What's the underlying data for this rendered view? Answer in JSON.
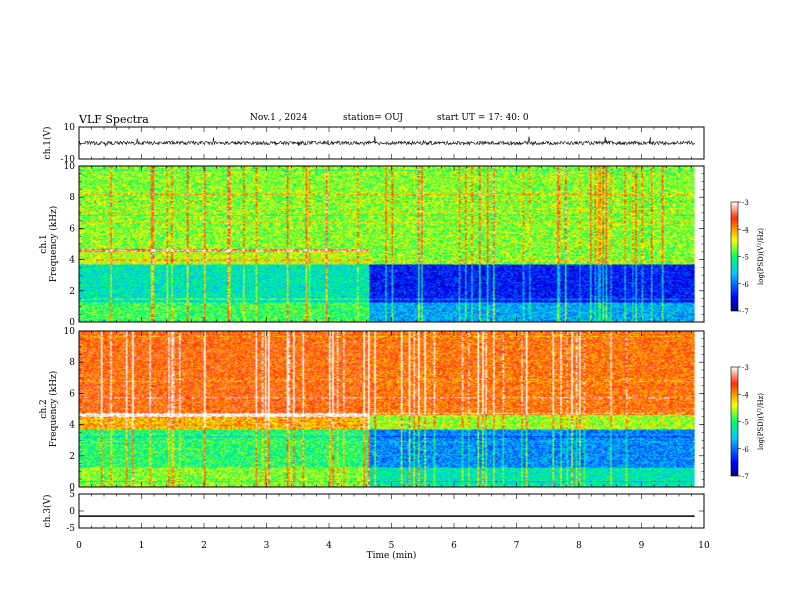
{
  "header": {
    "title": "VLF Spectra",
    "date": "Nov.1 , 2024",
    "station": "station= OUJ",
    "start": "start UT = 17: 40: 0"
  },
  "chart_data": [
    {
      "type": "line",
      "title": "",
      "ylabel": "ch.1(V)",
      "xlim": [
        0,
        10
      ],
      "ylim": [
        -10,
        10
      ],
      "yticks": [
        "10",
        "-10"
      ],
      "series": [
        {
          "description": "noisy waveform centered near zero",
          "amplitude_range": [
            -3,
            6
          ]
        }
      ]
    },
    {
      "type": "heatmap",
      "ylabel": "ch.1\nFrequency (kHz)",
      "ylabel_line1": "ch.1",
      "ylabel_line2": "Frequency (kHz)",
      "xlim": [
        0,
        10
      ],
      "ylim": [
        0,
        10
      ],
      "yticks": [
        "0",
        "2",
        "4",
        "6",
        "8",
        "10"
      ],
      "data_end_min": 9.85,
      "change_time_min": 4.65,
      "colorbar": {
        "label": "log(PSD)(V²/Hz)",
        "range": [
          -7,
          -3
        ],
        "ticks": [
          "-3",
          "-4",
          "-5",
          "-6",
          "-7"
        ]
      }
    },
    {
      "type": "heatmap",
      "ylabel": "ch.2\nFrequency (kHz)",
      "ylabel_line1": "ch.2",
      "ylabel_line2": "Frequency (kHz)",
      "xlim": [
        0,
        10
      ],
      "ylim": [
        0,
        10
      ],
      "yticks": [
        "0",
        "2",
        "4",
        "6",
        "8",
        "10"
      ],
      "data_end_min": 9.85,
      "change_time_min": 4.65,
      "colorbar": {
        "label": "log(PSD)(V²/Hz)",
        "range": [
          -7,
          -3
        ],
        "ticks": [
          "-3",
          "-4",
          "-5",
          "-6",
          "-7"
        ]
      }
    },
    {
      "type": "line",
      "ylabel": "ch.3(V)",
      "xlim": [
        0,
        10
      ],
      "ylim": [
        -5,
        5
      ],
      "yticks": [
        "5",
        "0",
        "-5"
      ],
      "series": [
        {
          "values": [
            -1.5,
            -1.5
          ]
        }
      ]
    }
  ],
  "xaxis": {
    "label": "Time (min)",
    "ticks": [
      "0",
      "1",
      "2",
      "3",
      "4",
      "5",
      "6",
      "7",
      "8",
      "9",
      "10"
    ]
  }
}
